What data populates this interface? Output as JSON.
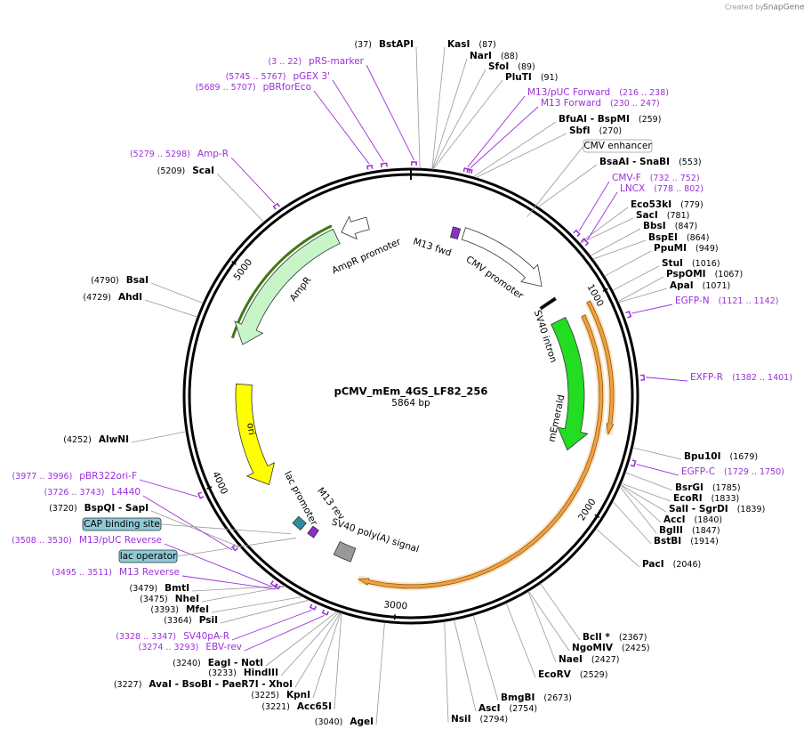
{
  "header": {
    "credit": "Created by",
    "brand": "SnapGene"
  },
  "map": {
    "name": "pCMV_mEm_4GS_LF82_256",
    "length": "5864 bp",
    "ticks": [
      1000,
      2000,
      3000,
      4000,
      5000
    ],
    "enzymes": [
      {
        "name": "BstAPI",
        "site": "(37)"
      },
      {
        "name": "KasI",
        "site": "(87)"
      },
      {
        "name": "NarI",
        "site": "(88)"
      },
      {
        "name": "SfoI",
        "site": "(89)"
      },
      {
        "name": "PluTI",
        "site": "(91)"
      },
      {
        "name": "BfuAI  -  BspMI",
        "site": "(259)"
      },
      {
        "name": "SbfI",
        "site": "(270)"
      },
      {
        "name": "BsaAI  -  SnaBI",
        "site": "(553)"
      },
      {
        "name": "Eco53kI",
        "site": "(779)"
      },
      {
        "name": "SacI",
        "site": "(781)"
      },
      {
        "name": "BbsI",
        "site": "(847)"
      },
      {
        "name": "BspEI",
        "site": "(864)"
      },
      {
        "name": "PpuMI",
        "site": "(949)"
      },
      {
        "name": "StuI",
        "site": "(1016)"
      },
      {
        "name": "PspOMI",
        "site": "(1067)"
      },
      {
        "name": "ApaI",
        "site": "(1071)"
      },
      {
        "name": "Bpu10I",
        "site": "(1679)"
      },
      {
        "name": "BsrGI",
        "site": "(1785)"
      },
      {
        "name": "EcoRI",
        "site": "(1833)"
      },
      {
        "name": "SalI  -  SgrDI",
        "site": "(1839)"
      },
      {
        "name": "AccI",
        "site": "(1840)"
      },
      {
        "name": "BglII",
        "site": "(1847)"
      },
      {
        "name": "BstBI",
        "site": "(1914)"
      },
      {
        "name": "PacI",
        "site": "(2046)"
      },
      {
        "name": "BclI *",
        "site": "(2367)"
      },
      {
        "name": "NgoMIV",
        "site": "(2425)"
      },
      {
        "name": "NaeI",
        "site": "(2427)"
      },
      {
        "name": "EcoRV",
        "site": "(2529)"
      },
      {
        "name": "BmgBI",
        "site": "(2673)"
      },
      {
        "name": "AscI",
        "site": "(2754)"
      },
      {
        "name": "NsiI",
        "site": "(2794)"
      },
      {
        "name": "AgeI",
        "site": "(3040)"
      },
      {
        "name": "Acc65I",
        "site": "(3221)"
      },
      {
        "name": "KpnI",
        "site": "(3225)"
      },
      {
        "name": "AvaI  -  BsoBI  -  PaeR7I  -  XhoI",
        "site": "(3227)"
      },
      {
        "name": "HindIII",
        "site": "(3233)"
      },
      {
        "name": "EagI  -  NotI",
        "site": "(3240)"
      },
      {
        "name": "PsiI",
        "site": "(3364)"
      },
      {
        "name": "MfeI",
        "site": "(3393)"
      },
      {
        "name": "NheI",
        "site": "(3475)"
      },
      {
        "name": "BmtI",
        "site": "(3479)"
      },
      {
        "name": "BspQI  -  SapI",
        "site": "(3720)"
      },
      {
        "name": "AlwNI",
        "site": "(4252)"
      },
      {
        "name": "AhdI",
        "site": "(4729)"
      },
      {
        "name": "BsaI",
        "site": "(4790)"
      },
      {
        "name": "ScaI",
        "site": "(5209)"
      }
    ],
    "primers": [
      {
        "label": "pRS-marker",
        "range": "(3 .. 22)"
      },
      {
        "label": "pGEX 3'",
        "range": "(5745 .. 5767)"
      },
      {
        "label": "pBRforEco",
        "range": "(5689 .. 5707)"
      },
      {
        "label": "M13/pUC Forward",
        "range": "(216 .. 238)"
      },
      {
        "label": "M13 Forward",
        "range": "(230 .. 247)"
      },
      {
        "label": "CMV-F",
        "range": "(732 .. 752)"
      },
      {
        "label": "LNCX",
        "range": "(778 .. 802)"
      },
      {
        "label": "EGFP-N",
        "range": "(1121 .. 1142)"
      },
      {
        "label": "EXFP-R",
        "range": "(1382 .. 1401)"
      },
      {
        "label": "EGFP-C",
        "range": "(1729 .. 1750)"
      },
      {
        "label": "Amp-R",
        "range": "(5279 .. 5298)"
      },
      {
        "label": "pBR322ori-F",
        "range": "(3977 .. 3996)"
      },
      {
        "label": "L4440",
        "range": "(3726 .. 3743)"
      },
      {
        "label": "M13/pUC Reverse",
        "range": "(3508 .. 3530)"
      },
      {
        "label": "M13 Reverse",
        "range": "(3495 .. 3511)"
      },
      {
        "label": "SV40pA-R",
        "range": "(3328 .. 3347)"
      },
      {
        "label": "EBV-rev",
        "range": "(3274 .. 3293)"
      }
    ],
    "boxes": [
      "CMV enhancer",
      "CAP binding site",
      "lac operator"
    ],
    "inner_features": [
      "M13 fwd",
      "CMV promoter",
      "SV40 intron",
      "mEmerald",
      "AmpR promoter",
      "AmpR",
      "ori",
      "lac promoter",
      "M13 rev",
      "SV40 poly(A) signal"
    ]
  }
}
